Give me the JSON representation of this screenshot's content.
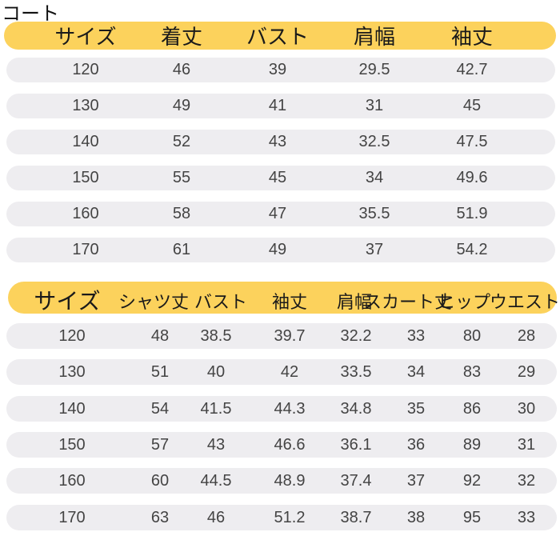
{
  "coat": {
    "title": "コート",
    "headers": [
      "サイズ",
      "着丈",
      "バスト",
      "肩幅",
      "袖丈"
    ],
    "rows": [
      [
        "120",
        "46",
        "39",
        "29.5",
        "42.7"
      ],
      [
        "130",
        "49",
        "41",
        "31",
        "45"
      ],
      [
        "140",
        "52",
        "43",
        "32.5",
        "47.5"
      ],
      [
        "150",
        "55",
        "45",
        "34",
        "49.6"
      ],
      [
        "160",
        "58",
        "47",
        "35.5",
        "51.9"
      ],
      [
        "170",
        "61",
        "49",
        "37",
        "54.2"
      ]
    ]
  },
  "set": {
    "headers": [
      "サイズ",
      "シャツ丈",
      "バスト",
      "袖丈",
      "肩幅",
      "スカート丈",
      "ヒップ",
      "ウエスト"
    ],
    "rows": [
      [
        "120",
        "48",
        "38.5",
        "39.7",
        "32.2",
        "33",
        "80",
        "28"
      ],
      [
        "130",
        "51",
        "40",
        "42",
        "33.5",
        "34",
        "83",
        "29"
      ],
      [
        "140",
        "54",
        "41.5",
        "44.3",
        "34.8",
        "35",
        "86",
        "30"
      ],
      [
        "150",
        "57",
        "43",
        "46.6",
        "36.1",
        "36",
        "89",
        "31"
      ],
      [
        "160",
        "60",
        "44.5",
        "48.9",
        "37.4",
        "37",
        "92",
        "32"
      ],
      [
        "170",
        "63",
        "46",
        "51.2",
        "38.7",
        "38",
        "95",
        "33"
      ]
    ]
  },
  "colors": {
    "header": "#fcd25c",
    "row": "#eeedf0",
    "text": "#444444"
  }
}
